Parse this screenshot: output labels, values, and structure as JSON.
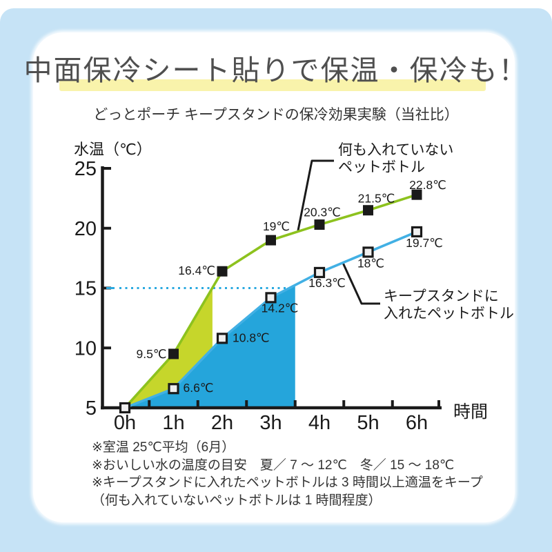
{
  "page": {
    "title": "中面保冷シート貼りで保温・保冷も！",
    "subtitle": "どっとポーチ キープスタンドの保冷効果実験（当社比）",
    "notes": [
      "※室温 25℃平均（6月）",
      "※おいしい水の温度の目安　夏／ 7 ～ 12℃　冬／ 15 ～ 18℃",
      "※キープスタンドに入れたペットボトルは 3 時間以上適温をキープ",
      "（何も入れていないペットボトルは 1 時間程度）"
    ]
  },
  "annotations": {
    "green": {
      "line1": "何も入れていない",
      "line2": "ペットボトル"
    },
    "blue": {
      "line1": "キープスタンドに",
      "line2": "入れたペットボトル"
    }
  },
  "colors": {
    "background_blue": "#c6e3f6",
    "card": "#ffffff",
    "title_highlight": "#f9f3ab",
    "axis": "#1a1a1a",
    "green_line": "#8dc21e",
    "green_area": "#c6d62b",
    "blue_line": "#42b0e4",
    "blue_area": "#25a5db",
    "threshold_dotted": "#2aa9e0"
  },
  "chart_data": {
    "type": "line",
    "title": "どっとポーチ キープスタンドの保冷効果実験（当社比）",
    "xlabel": "時間",
    "ylabel": "水温（℃）",
    "x": [
      0,
      1,
      2,
      3,
      4,
      5,
      6
    ],
    "x_tick_labels": [
      "0h",
      "1h",
      "2h",
      "3h",
      "4h",
      "5h",
      "6h"
    ],
    "y_ticks": [
      5,
      10,
      15,
      20,
      25
    ],
    "y_tick_labels": [
      "5",
      "10",
      "15",
      "20",
      "25"
    ],
    "ylim": [
      5,
      25
    ],
    "grid": false,
    "legend_position": "callout-annotations",
    "series": [
      {
        "name": "何も入れていないペットボトル",
        "color": "#8dc21e",
        "marker": "black-filled-square",
        "values": [
          5,
          9.5,
          16.4,
          19,
          20.3,
          21.5,
          22.8
        ],
        "value_labels": [
          "",
          "9.5℃",
          "16.4℃",
          "19℃",
          "20.3℃",
          "21.5℃",
          "22.8℃"
        ],
        "area_fill": "#c6d62b",
        "area_end_x": 1.8
      },
      {
        "name": "キープスタンドに入れたペットボトル",
        "color": "#42b0e4",
        "marker": "white-square-black-border",
        "values": [
          5,
          6.6,
          10.8,
          14.2,
          16.3,
          18,
          19.7
        ],
        "value_labels": [
          "",
          "6.6℃",
          "10.8℃",
          "14.2℃",
          "16.3℃",
          "18℃",
          "19.7℃"
        ],
        "area_fill": "#25a5db",
        "area_end_x": 3.5
      }
    ],
    "threshold_line": {
      "y": 15,
      "style": "dotted",
      "color": "#2aa9e0"
    }
  }
}
